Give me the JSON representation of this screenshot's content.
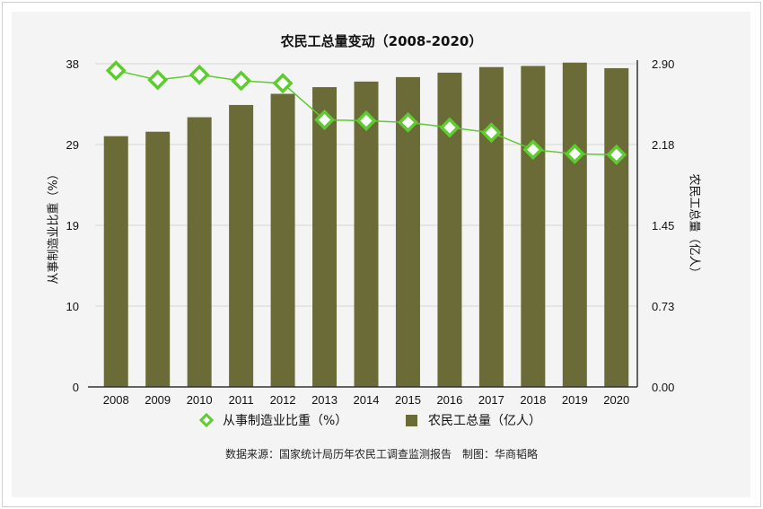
{
  "chart_data": {
    "type": "bar+line",
    "title": "农民工总量变动（2008-2020）",
    "categories": [
      "2008",
      "2009",
      "2010",
      "2011",
      "2012",
      "2013",
      "2014",
      "2015",
      "2016",
      "2017",
      "2018",
      "2019",
      "2020"
    ],
    "series": [
      {
        "name": "农民工总量（亿人）",
        "type": "bar",
        "axis": "right",
        "color": "#6b6b37",
        "values": [
          2.25,
          2.29,
          2.42,
          2.53,
          2.63,
          2.69,
          2.74,
          2.78,
          2.82,
          2.87,
          2.88,
          2.91,
          2.86
        ]
      },
      {
        "name": "从事制造业比重（%）",
        "type": "line",
        "axis": "left",
        "color": "#5ccc2e",
        "values": [
          37.2,
          36.1,
          36.7,
          36.0,
          35.7,
          31.4,
          31.3,
          31.1,
          30.5,
          29.9,
          27.9,
          27.4,
          27.3
        ]
      }
    ],
    "ylabel": "从事制造业比重（%）",
    "y2label": "农民工总量（亿人）",
    "ylim": [
      0,
      38
    ],
    "y2lim": [
      0,
      2.9
    ],
    "yticks": [
      "0",
      "10",
      "19",
      "29",
      "38"
    ],
    "y2ticks": [
      "0.00",
      "0.73",
      "1.45",
      "2.18",
      "2.90"
    ],
    "grid": true,
    "legend_position": "bottom"
  },
  "legend": {
    "line_label": "从事制造业比重（%）",
    "bar_label": "农民工总量（亿人）"
  },
  "source": "数据来源：国家统计局历年农民工调查监测报告　制图：华商韬略"
}
